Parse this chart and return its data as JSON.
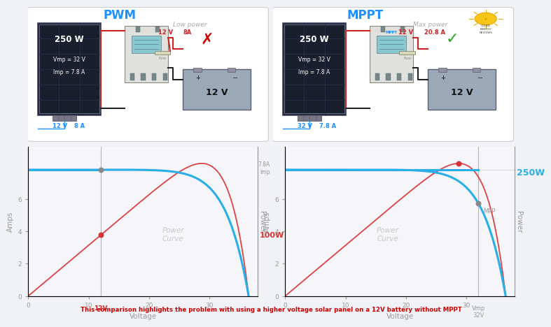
{
  "fig_width": 7.09,
  "fig_height": 4.6,
  "bg_color": "#f0f2f5",
  "title_pwm": "PWM",
  "title_mppt": "MPPT",
  "title_color": "#1e90ff",
  "bottom_text": "This comparison highlights the problem with using a higher voltage solar panel on a 12V battery without MPPT",
  "bottom_text_color": "#cc0000",
  "pwm_low_power": "Low power",
  "mppt_max_power": "Max power",
  "pwm_panel_text_0": "250 W",
  "pwm_panel_text_1": "Vmp = 32 V",
  "pwm_panel_text_2": "Imp = 7.8 A",
  "pwm_bottom_v": "12 V",
  "pwm_bottom_a": "8 A",
  "mppt_bottom_v": "32 V",
  "mppt_bottom_a": "7.8 A",
  "pwm_out_v": "12 V",
  "pwm_out_a": "8A",
  "mppt_out_v": "12 V",
  "mppt_out_a": "20.8 A",
  "battery_label": "12 V",
  "iv_blue": "#29aee6",
  "power_red": "#d93030",
  "power_curve_label_color": "#c8c8c8",
  "axis_color": "#999999",
  "pwm_op_label": "100W",
  "mppt_op_label": "250W",
  "voc": 36.5,
  "isc": 7.8,
  "vmp": 32.0,
  "graph_xlim": [
    0,
    38
  ],
  "graph_ylim": [
    0,
    9.2
  ],
  "cross_color": "#cc0000",
  "check_color": "#22aa22",
  "panel_dark": "#1a1f2e",
  "panel_grid": "#2a3050",
  "controller_bg": "#e0e0dc",
  "battery_bg": "#9aa8b8",
  "wire_red": "#cc2222",
  "wire_black": "#222222",
  "wire_blue": "#1e90ff",
  "label_gray": "#aaaaaa",
  "logo_color": "#f0a020",
  "fuse_bg": "#d8d8b8"
}
